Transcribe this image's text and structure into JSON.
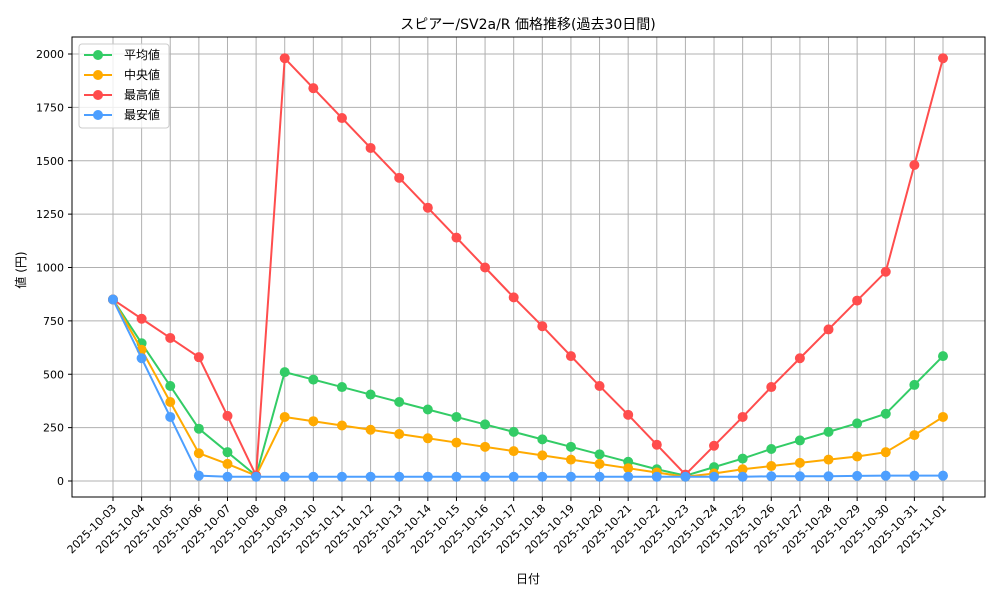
{
  "chart_data": {
    "type": "line",
    "title": "スピアー/SV2a/R 価格推移(過去30日間)",
    "xlabel": "日付",
    "ylabel": "値 (円)",
    "ylim": [
      -75,
      2070
    ],
    "yticks": [
      0,
      250,
      500,
      750,
      1000,
      1250,
      1500,
      1750,
      2000
    ],
    "grid": true,
    "legend_position": "upper left",
    "categories": [
      "2025-10-03",
      "2025-10-04",
      "2025-10-05",
      "2025-10-06",
      "2025-10-07",
      "2025-10-08",
      "2025-10-09",
      "2025-10-10",
      "2025-10-11",
      "2025-10-12",
      "2025-10-13",
      "2025-10-14",
      "2025-10-15",
      "2025-10-16",
      "2025-10-17",
      "2025-10-18",
      "2025-10-19",
      "2025-10-20",
      "2025-10-21",
      "2025-10-22",
      "2025-10-23",
      "2025-10-24",
      "2025-10-25",
      "2025-10-26",
      "2025-10-27",
      "2025-10-28",
      "2025-10-29",
      "2025-10-30",
      "2025-10-31",
      "2025-11-01"
    ],
    "series": [
      {
        "name": "平均値",
        "color": "#33cc66",
        "values": [
          850,
          645,
          445,
          245,
          135,
          25,
          510,
          475,
          440,
          405,
          370,
          335,
          300,
          265,
          230,
          195,
          160,
          125,
          90,
          55,
          25,
          65,
          105,
          150,
          190,
          230,
          270,
          315,
          450,
          585
        ]
      },
      {
        "name": "中央値",
        "color": "#ffaa00",
        "values": [
          850,
          615,
          370,
          130,
          80,
          25,
          300,
          280,
          260,
          240,
          220,
          200,
          180,
          160,
          140,
          120,
          100,
          80,
          60,
          40,
          20,
          35,
          55,
          70,
          85,
          100,
          115,
          135,
          215,
          300
        ]
      },
      {
        "name": "最高値",
        "color": "#ff4d4d",
        "values": [
          850,
          760,
          670,
          580,
          305,
          25,
          1980,
          1840,
          1700,
          1560,
          1420,
          1280,
          1140,
          1000,
          860,
          725,
          585,
          445,
          310,
          170,
          30,
          165,
          300,
          440,
          575,
          710,
          845,
          980,
          1480,
          1980
        ]
      },
      {
        "name": "最安値",
        "color": "#4d9fff",
        "values": [
          850,
          575,
          300,
          25,
          20,
          20,
          20,
          20,
          20,
          20,
          20,
          20,
          20,
          20,
          20,
          20,
          20,
          20,
          20,
          20,
          20,
          20,
          20,
          22,
          22,
          22,
          24,
          25,
          25,
          25
        ]
      }
    ]
  }
}
